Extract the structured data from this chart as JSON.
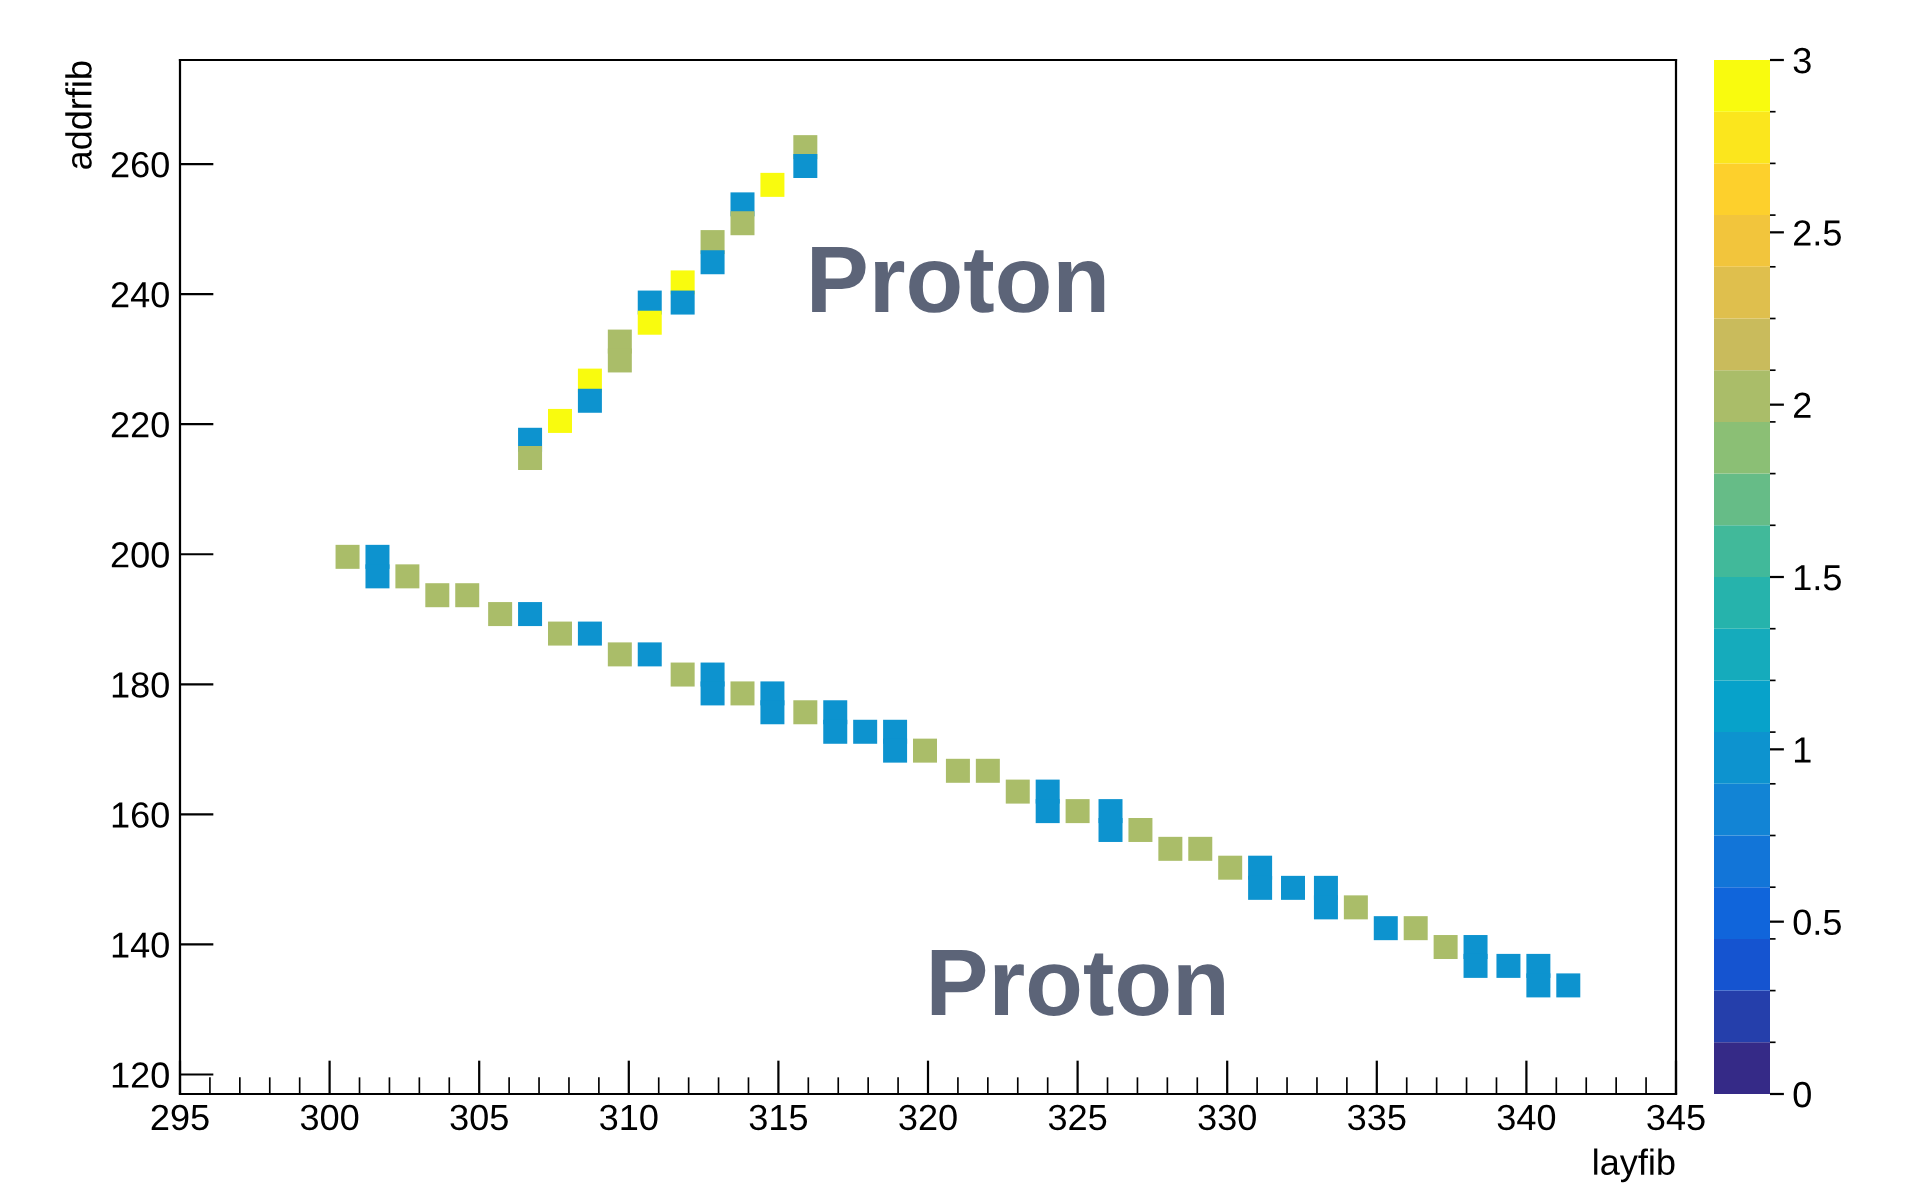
{
  "chart_data": {
    "type": "scatter",
    "xlabel": "layfib",
    "ylabel": "addrfib",
    "marker": "square",
    "grid": false,
    "x": [
      300.6,
      301.6,
      301.6,
      302.6,
      303.6,
      304.6,
      305.7,
      306.7,
      307.7,
      308.7,
      309.7,
      310.7,
      311.8,
      312.8,
      312.8,
      313.8,
      314.8,
      314.8,
      315.9,
      316.9,
      316.9,
      317.9,
      318.9,
      318.9,
      319.9,
      321.0,
      322.0,
      323.0,
      324.0,
      324.0,
      325.0,
      326.1,
      326.1,
      327.1,
      328.1,
      329.1,
      330.1,
      331.1,
      331.1,
      332.2,
      333.3,
      333.3,
      334.3,
      335.3,
      336.3,
      337.3,
      338.3,
      338.3,
      339.4,
      340.4,
      340.4,
      341.4,
      315.9,
      315.9,
      314.8,
      313.8,
      313.8,
      312.8,
      312.8,
      311.8,
      310.7,
      311.8,
      310.7,
      309.7,
      309.7,
      308.7,
      308.7,
      307.7,
      306.7,
      306.7
    ],
    "values": [
      199.6,
      199.6,
      196.6,
      196.6,
      193.7,
      193.7,
      190.8,
      190.8,
      187.8,
      187.8,
      184.6,
      184.6,
      181.5,
      181.5,
      178.6,
      178.6,
      178.6,
      175.7,
      175.7,
      175.7,
      172.7,
      172.7,
      172.7,
      169.8,
      169.8,
      166.7,
      166.7,
      163.5,
      163.5,
      160.5,
      160.5,
      160.5,
      157.6,
      157.6,
      154.7,
      154.7,
      151.8,
      151.8,
      148.7,
      148.7,
      148.7,
      145.7,
      145.7,
      142.5,
      142.5,
      139.6,
      139.6,
      136.7,
      136.7,
      136.7,
      133.7,
      133.7,
      262.6,
      259.7,
      256.8,
      253.8,
      250.9,
      248.0,
      244.9,
      241.8,
      238.7,
      238.7,
      235.6,
      232.7,
      229.8,
      226.7,
      223.6,
      220.5,
      217.6,
      214.8
    ],
    "cvalues": [
      2,
      1,
      1,
      2,
      2,
      2,
      2,
      1,
      2,
      1,
      2,
      1,
      2,
      1,
      1,
      2,
      1,
      1,
      2,
      1,
      1,
      1,
      1,
      1,
      2,
      2,
      2,
      2,
      1,
      1,
      2,
      1,
      1,
      2,
      2,
      2,
      2,
      1,
      1,
      1,
      1,
      1,
      2,
      1,
      2,
      2,
      1,
      1,
      1,
      1,
      1,
      1,
      2,
      1,
      3,
      1,
      2,
      2,
      1,
      3,
      1,
      1,
      3,
      2,
      2,
      3,
      1,
      3,
      1,
      2
    ],
    "xlim": [
      295,
      345
    ],
    "ylim": [
      117,
      276
    ],
    "xticks": [
      295,
      300,
      305,
      310,
      315,
      320,
      325,
      330,
      335,
      340,
      345
    ],
    "yticks": [
      120,
      140,
      160,
      180,
      200,
      220,
      240,
      260
    ],
    "clim": [
      0,
      3
    ],
    "cticks": [
      0,
      0.5,
      1,
      1.5,
      2,
      2.5,
      3
    ],
    "annotations": [
      "Proton",
      "Proton"
    ]
  }
}
